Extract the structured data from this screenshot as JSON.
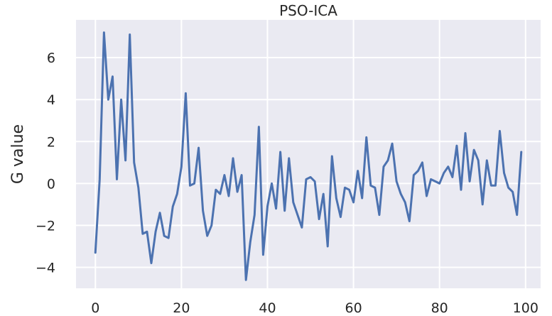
{
  "chart_data": {
    "type": "line",
    "title": "PSO-ICA",
    "xlabel": "",
    "ylabel": "G value",
    "xlim": [
      -4.5,
      103.5
    ],
    "ylim": [
      -5,
      7.8
    ],
    "xticks": [
      0,
      20,
      40,
      60,
      80,
      100
    ],
    "yticks": [
      -4,
      -2,
      0,
      2,
      4,
      6
    ],
    "grid": true,
    "colors": {
      "background": "#eaeaf2",
      "line": "#4c72b0",
      "grid": "#ffffff"
    },
    "series": [
      {
        "name": "",
        "x": [
          0,
          1,
          2,
          3,
          4,
          5,
          6,
          7,
          8,
          9,
          10,
          11,
          12,
          13,
          14,
          15,
          16,
          17,
          18,
          19,
          20,
          21,
          22,
          23,
          24,
          25,
          26,
          27,
          28,
          29,
          30,
          31,
          32,
          33,
          34,
          35,
          36,
          37,
          38,
          39,
          40,
          41,
          42,
          43,
          44,
          45,
          46,
          47,
          48,
          49,
          50,
          51,
          52,
          53,
          54,
          55,
          56,
          57,
          58,
          59,
          60,
          61,
          62,
          63,
          64,
          65,
          66,
          67,
          68,
          69,
          70,
          71,
          72,
          73,
          74,
          75,
          76,
          77,
          78,
          79,
          80,
          81,
          82,
          83,
          84,
          85,
          86,
          87,
          88,
          89,
          90,
          91,
          92,
          93,
          94,
          95,
          96,
          97,
          98,
          99
        ],
        "y": [
          -3.3,
          0.2,
          7.2,
          4.0,
          5.1,
          0.2,
          4.0,
          1.1,
          7.1,
          1.0,
          -0.2,
          -2.4,
          -2.3,
          -3.8,
          -2.3,
          -1.4,
          -2.5,
          -2.6,
          -1.1,
          -0.5,
          0.8,
          4.3,
          -0.1,
          0.0,
          1.7,
          -1.3,
          -2.5,
          -2.0,
          -0.3,
          -0.5,
          0.4,
          -0.6,
          1.2,
          -0.4,
          0.4,
          -4.6,
          -2.8,
          -1.5,
          2.7,
          -3.4,
          -1.1,
          0.0,
          -1.2,
          1.5,
          -1.3,
          1.2,
          -0.9,
          -1.5,
          -2.1,
          0.2,
          0.3,
          0.1,
          -1.7,
          -0.5,
          -3.0,
          1.3,
          -0.7,
          -1.6,
          -0.2,
          -0.3,
          -0.9,
          0.6,
          -0.7,
          2.2,
          -0.1,
          -0.2,
          -1.5,
          0.8,
          1.1,
          1.9,
          0.1,
          -0.5,
          -0.9,
          -1.8,
          0.4,
          0.6,
          1.0,
          -0.6,
          0.2,
          0.1,
          0.0,
          0.5,
          0.8,
          0.3,
          1.8,
          -0.3,
          2.4,
          0.1,
          1.6,
          1.1,
          -1.0,
          1.1,
          -0.1,
          -0.1,
          2.5,
          0.5,
          -0.2,
          -0.4,
          -1.5,
          1.5
        ]
      }
    ]
  }
}
